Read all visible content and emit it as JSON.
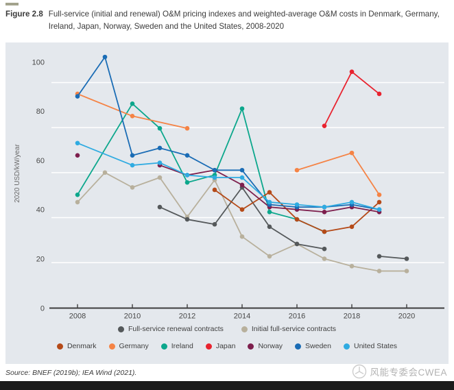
{
  "figure": {
    "label": "Figure 2.8",
    "title": "Full-service (initial and renewal) O&M pricing indexes and weighted-average O&M costs in Denmark, Germany, Ireland, Japan, Norway, Sweden and the United States, 2008-2020"
  },
  "source_line": "Source: BNEF (2019b); IEA Wind (2021).",
  "watermark": {
    "text": "风能专委会CWEA",
    "logo_icon": "cwea-wind-logo",
    "color": "#b3b3b3"
  },
  "chart_data": {
    "type": "line",
    "title": "Full-service (initial and renewal) O&M pricing indexes and weighted-average O&M costs in Denmark, Germany, Ireland, Japan, Norway, Sweden and the United States, 2008-2020",
    "xlabel": "",
    "ylabel": "2020 USD/kW/year",
    "xlim": [
      2006.9,
      2021.4
    ],
    "ylim": [
      0,
      105
    ],
    "x_ticks": [
      2008,
      2010,
      2012,
      2014,
      2016,
      2018,
      2020
    ],
    "y_ticks": [
      0,
      20,
      40,
      60,
      80,
      100
    ],
    "gridlines_at": [
      18.4,
      36.7,
      55.0,
      73.3,
      91.6
    ],
    "grid": true,
    "plot_background": "#e4e8ed",
    "gridline_color": "#ffffff",
    "axis_color": "#3d3d3d",
    "legend_position": "bottom",
    "legend_rows": [
      [
        "Full-service renewal contracts",
        "Initial full-service contracts"
      ],
      [
        "Denmark",
        "Germany",
        "Ireland",
        "Japan",
        "Norway",
        "Sweden",
        "United States"
      ]
    ],
    "series": [
      {
        "name": "Initial full-service contracts",
        "color": "#b8b09c",
        "segments": [
          [
            [
              2008,
              43
            ],
            [
              2009,
              55
            ],
            [
              2010,
              49
            ],
            [
              2011,
              53
            ],
            [
              2012,
              37
            ],
            [
              2013,
              52
            ],
            [
              2014,
              29
            ],
            [
              2015,
              21
            ],
            [
              2016,
              26
            ],
            [
              2017,
              20
            ],
            [
              2018,
              17
            ],
            [
              2019,
              15
            ],
            [
              2020,
              15
            ]
          ]
        ]
      },
      {
        "name": "Full-service renewal contracts",
        "color": "#54585a",
        "segments": [
          [
            [
              2011,
              41
            ],
            [
              2012,
              36
            ],
            [
              2013,
              34
            ],
            [
              2014,
              49
            ],
            [
              2015,
              33
            ],
            [
              2016,
              26
            ],
            [
              2017,
              24
            ]
          ],
          [
            [
              2019,
              21
            ],
            [
              2020,
              20
            ]
          ]
        ]
      },
      {
        "name": "Ireland",
        "color": "#0ca78c",
        "segments": [
          [
            [
              2008,
              46
            ],
            [
              2010,
              83
            ],
            [
              2011,
              73
            ],
            [
              2012,
              51
            ],
            [
              2013,
              54
            ],
            [
              2014,
              81
            ],
            [
              2015,
              39
            ],
            [
              2016,
              36
            ],
            [
              2017,
              31
            ]
          ]
        ]
      },
      {
        "name": "Germany",
        "color": "#f58345",
        "segments": [
          [
            [
              2008,
              87
            ],
            [
              2010,
              78
            ],
            [
              2012,
              73
            ]
          ],
          [
            [
              2016,
              56
            ],
            [
              2018,
              63
            ],
            [
              2019,
              46
            ]
          ]
        ]
      },
      {
        "name": "Denmark",
        "color": "#b54a18",
        "segments": [
          [
            [
              2013,
              48
            ],
            [
              2014,
              40
            ],
            [
              2015,
              47
            ],
            [
              2016,
              36
            ],
            [
              2017,
              31
            ],
            [
              2018,
              33
            ],
            [
              2019,
              43
            ]
          ]
        ]
      },
      {
        "name": "Norway",
        "color": "#7d1f4d",
        "segments": [
          [
            [
              2008,
              62
            ]
          ],
          [
            [
              2011,
              58
            ],
            [
              2012,
              54
            ],
            [
              2013,
              56
            ],
            [
              2014,
              50
            ],
            [
              2015,
              41
            ],
            [
              2016,
              40
            ],
            [
              2017,
              39
            ],
            [
              2018,
              41
            ],
            [
              2019,
              39
            ]
          ]
        ]
      },
      {
        "name": "Sweden",
        "color": "#1a6cb5",
        "segments": [
          [
            [
              2008,
              86
            ],
            [
              2009,
              102
            ],
            [
              2010,
              62
            ],
            [
              2011,
              65
            ],
            [
              2012,
              62
            ],
            [
              2013,
              56
            ],
            [
              2014,
              56
            ],
            [
              2015,
              42
            ],
            [
              2016,
              41
            ],
            [
              2017,
              41
            ],
            [
              2018,
              42
            ],
            [
              2019,
              40
            ]
          ]
        ]
      },
      {
        "name": "United States",
        "color": "#2fabe1",
        "segments": [
          [
            [
              2008,
              67
            ],
            [
              2010,
              58
            ],
            [
              2011,
              59
            ],
            [
              2012,
              54
            ],
            [
              2013,
              53
            ],
            [
              2014,
              53
            ],
            [
              2015,
              43
            ],
            [
              2016,
              42
            ],
            [
              2017,
              41
            ],
            [
              2018,
              43
            ],
            [
              2019,
              40
            ]
          ]
        ]
      },
      {
        "name": "Japan",
        "color": "#e8232f",
        "segments": [
          [
            [
              2017,
              74
            ],
            [
              2018,
              96
            ],
            [
              2019,
              87
            ]
          ]
        ]
      }
    ]
  }
}
